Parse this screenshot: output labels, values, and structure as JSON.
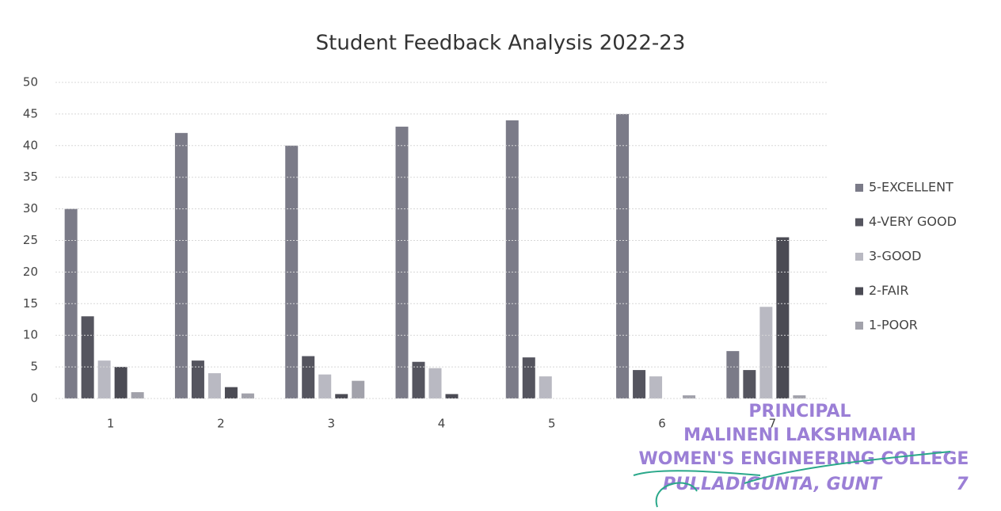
{
  "chart_data": {
    "type": "bar",
    "title": "Student Feedback Analysis 2022-23",
    "categories": [
      "1",
      "2",
      "3",
      "4",
      "5",
      "6",
      "7"
    ],
    "series": [
      {
        "name": "5-EXCELLENT",
        "color": "#7b7b88",
        "values": [
          30,
          42,
          40,
          43,
          44,
          45,
          7.5
        ]
      },
      {
        "name": "4-VERY GOOD",
        "color": "#55555f",
        "values": [
          13,
          6,
          6.7,
          5.8,
          6.5,
          4.5,
          4.5
        ]
      },
      {
        "name": "3-GOOD",
        "color": "#b9b9c2",
        "values": [
          6,
          4,
          3.8,
          4.8,
          3.5,
          3.5,
          14.5
        ]
      },
      {
        "name": "2-FAIR",
        "color": "#4b4b54",
        "values": [
          5,
          1.8,
          0.7,
          0.7,
          0,
          0,
          25.5
        ]
      },
      {
        "name": "1-POOR",
        "color": "#a2a2ab",
        "values": [
          1,
          0.8,
          2.8,
          0,
          0,
          0.5,
          0.5
        ]
      }
    ],
    "ylim": [
      0,
      50
    ],
    "yticks": [
      0,
      5,
      10,
      15,
      20,
      25,
      30,
      35,
      40,
      45,
      50
    ],
    "grid": true,
    "legend": "right",
    "annotations": [
      "PRINCIPAL",
      "MALINENI LAKSHMAIAH",
      "WOMEN'S ENGINEERING COLLEGE",
      "PULLADIGUNTA, GUNT",
      "7"
    ]
  }
}
